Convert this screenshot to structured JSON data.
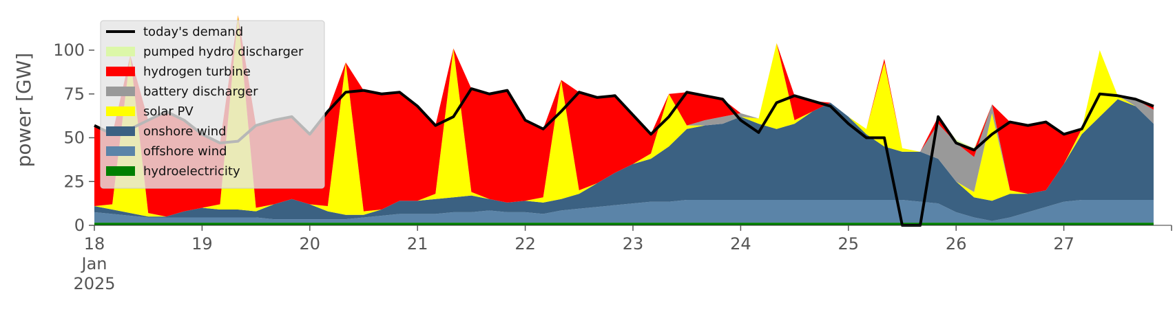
{
  "chart_data": {
    "type": "area",
    "ylabel": "power [GW]",
    "x": [
      "2025-01-18T00:00",
      "2025-01-18T04:00",
      "2025-01-18T08:00",
      "2025-01-18T12:00",
      "2025-01-18T16:00",
      "2025-01-18T20:00",
      "2025-01-19T00:00",
      "2025-01-19T04:00",
      "2025-01-19T08:00",
      "2025-01-19T12:00",
      "2025-01-19T16:00",
      "2025-01-19T20:00",
      "2025-01-20T00:00",
      "2025-01-20T04:00",
      "2025-01-20T08:00",
      "2025-01-20T12:00",
      "2025-01-20T16:00",
      "2025-01-20T20:00",
      "2025-01-21T00:00",
      "2025-01-21T04:00",
      "2025-01-21T08:00",
      "2025-01-21T12:00",
      "2025-01-21T16:00",
      "2025-01-21T20:00",
      "2025-01-22T00:00",
      "2025-01-22T04:00",
      "2025-01-22T08:00",
      "2025-01-22T12:00",
      "2025-01-22T16:00",
      "2025-01-22T20:00",
      "2025-01-23T00:00",
      "2025-01-23T04:00",
      "2025-01-23T08:00",
      "2025-01-23T12:00",
      "2025-01-23T16:00",
      "2025-01-23T20:00",
      "2025-01-24T00:00",
      "2025-01-24T04:00",
      "2025-01-24T08:00",
      "2025-01-24T12:00",
      "2025-01-24T16:00",
      "2025-01-24T20:00",
      "2025-01-25T00:00",
      "2025-01-25T04:00",
      "2025-01-25T08:00",
      "2025-01-25T12:00",
      "2025-01-25T16:00",
      "2025-01-25T20:00",
      "2025-01-26T00:00",
      "2025-01-26T04:00",
      "2025-01-26T08:00",
      "2025-01-26T12:00",
      "2025-01-26T16:00",
      "2025-01-26T20:00",
      "2025-01-27T00:00",
      "2025-01-27T04:00",
      "2025-01-27T08:00",
      "2025-01-27T12:00",
      "2025-01-27T16:00",
      "2025-01-27T20:00"
    ],
    "demand": {
      "name": "today's demand",
      "color": "#000000",
      "values": [
        57,
        52,
        55,
        60,
        65,
        60,
        52,
        47,
        48,
        57,
        60,
        62,
        52,
        65,
        76,
        77,
        75,
        76,
        68,
        57,
        62,
        78,
        75,
        77,
        60,
        55,
        65,
        76,
        73,
        74,
        63,
        52,
        62,
        76,
        74,
        72,
        60,
        53,
        70,
        74,
        71,
        68,
        58,
        50,
        50,
        0,
        0,
        62,
        47,
        43,
        52,
        59,
        57,
        59,
        52,
        55,
        75,
        74,
        72,
        68
      ]
    },
    "series": [
      {
        "name": "pumped hydro discharger",
        "color": "#dcf7a8",
        "values": [
          0,
          0,
          0,
          0,
          0,
          0,
          0,
          0,
          0,
          0,
          0,
          0,
          0,
          0,
          0,
          0,
          0,
          0,
          0,
          0,
          0,
          0,
          0,
          0,
          0,
          0,
          0,
          0,
          0,
          0,
          0,
          0,
          0,
          0,
          0,
          0,
          0,
          0,
          0,
          0,
          0,
          0,
          0,
          0,
          0,
          0,
          0,
          0,
          2,
          1,
          0,
          0,
          0,
          0,
          0,
          0,
          0,
          0,
          0,
          0
        ]
      },
      {
        "name": "hydrogen turbine",
        "color": "#ff0000",
        "values": [
          46,
          40,
          0,
          53,
          60,
          52,
          42,
          35,
          0,
          47,
          48,
          47,
          40,
          54,
          0,
          69,
          66,
          62,
          54,
          39,
          0,
          59,
          60,
          64,
          46,
          39,
          0,
          56,
          49,
          44,
          28,
          11,
          0,
          19,
          14,
          10,
          0,
          0,
          0,
          14,
          6,
          0,
          0,
          0,
          2,
          0,
          0,
          4,
          0,
          4,
          0,
          39,
          39,
          39,
          17,
          0,
          0,
          0,
          0,
          2
        ]
      },
      {
        "name": "battery discharger",
        "color": "#999999",
        "values": [
          0,
          0,
          0,
          0,
          0,
          0,
          0,
          0,
          0,
          0,
          0,
          0,
          0,
          0,
          0,
          0,
          0,
          0,
          0,
          0,
          0,
          0,
          0,
          0,
          0,
          0,
          0,
          0,
          0,
          0,
          0,
          0,
          0,
          0,
          3,
          4,
          2,
          0,
          0,
          0,
          0,
          0,
          0,
          0,
          0,
          0,
          0,
          20,
          22,
          20,
          5,
          0,
          0,
          0,
          0,
          0,
          0,
          0,
          4,
          8
        ]
      },
      {
        "name": "solar PV",
        "color": "#ffff00",
        "values": [
          0,
          3,
          90,
          2,
          0,
          0,
          0,
          3,
          111,
          2,
          0,
          0,
          0,
          3,
          87,
          2,
          0,
          0,
          0,
          3,
          85,
          2,
          0,
          0,
          0,
          3,
          68,
          2,
          0,
          0,
          0,
          3,
          30,
          2,
          0,
          0,
          0,
          3,
          49,
          2,
          0,
          0,
          0,
          3,
          48,
          2,
          0,
          0,
          0,
          3,
          50,
          2,
          0,
          0,
          0,
          3,
          38,
          2,
          0,
          0
        ]
      },
      {
        "name": "onshore wind",
        "color": "#3b6182",
        "values": [
          3.5,
          2.5,
          1.5,
          0.5,
          0.5,
          3.5,
          5.5,
          4.5,
          4.5,
          3.5,
          8.5,
          11.5,
          8.5,
          4.5,
          2.5,
          1.5,
          3.5,
          7.5,
          7.5,
          8.5,
          8.5,
          9.5,
          6.5,
          5.5,
          6.5,
          6.5,
          6.5,
          8.5,
          13.5,
          18.5,
          22.5,
          24.5,
          31.5,
          40.5,
          42.5,
          43.5,
          47.5,
          43.5,
          40.5,
          43.5,
          50.5,
          55.5,
          47.5,
          37.5,
          30.5,
          27.5,
          28.5,
          25.5,
          17.5,
          11.5,
          11.5,
          13.5,
          10.5,
          9.5,
          21.5,
          37.5,
          47.5,
          57.5,
          53.5,
          43.5
        ]
      },
      {
        "name": "offshore wind",
        "color": "#5b84a8",
        "values": [
          6,
          5,
          4,
          3,
          3,
          3,
          3,
          3,
          3,
          3,
          2,
          2,
          2,
          2,
          2,
          3,
          4,
          5,
          5,
          5,
          6,
          6,
          7,
          6,
          6,
          5,
          7,
          8,
          9,
          10,
          11,
          12,
          12,
          13,
          13,
          13,
          13,
          13,
          13,
          13,
          13,
          13,
          13,
          13,
          13,
          13,
          12,
          11,
          6,
          3,
          1,
          3,
          6,
          9,
          12,
          13,
          13,
          13,
          13,
          13
        ]
      },
      {
        "name": "hydroelectricity",
        "color": "#008000",
        "values": [
          1.5,
          1.5,
          1.5,
          1.5,
          1.5,
          1.5,
          1.5,
          1.5,
          1.5,
          1.5,
          1.5,
          1.5,
          1.5,
          1.5,
          1.5,
          1.5,
          1.5,
          1.5,
          1.5,
          1.5,
          1.5,
          1.5,
          1.5,
          1.5,
          1.5,
          1.5,
          1.5,
          1.5,
          1.5,
          1.5,
          1.5,
          1.5,
          1.5,
          1.5,
          1.5,
          1.5,
          1.5,
          1.5,
          1.5,
          1.5,
          1.5,
          1.5,
          1.5,
          1.5,
          1.5,
          1.5,
          1.5,
          1.5,
          1.5,
          1.5,
          1.5,
          1.5,
          1.5,
          1.5,
          1.5,
          1.5,
          1.5,
          1.5,
          1.5,
          1.5
        ]
      }
    ],
    "xlim": [
      "2025-01-18T00:00",
      "2025-01-28T00:00"
    ],
    "xticks": [
      {
        "value": "2025-01-18T00:00",
        "label": "18\nJan\n2025"
      },
      {
        "value": "2025-01-19T00:00",
        "label": "19"
      },
      {
        "value": "2025-01-20T00:00",
        "label": "20"
      },
      {
        "value": "2025-01-21T00:00",
        "label": "21"
      },
      {
        "value": "2025-01-22T00:00",
        "label": "22"
      },
      {
        "value": "2025-01-23T00:00",
        "label": "23"
      },
      {
        "value": "2025-01-24T00:00",
        "label": "24"
      },
      {
        "value": "2025-01-25T00:00",
        "label": "25"
      },
      {
        "value": "2025-01-26T00:00",
        "label": "26"
      },
      {
        "value": "2025-01-27T00:00",
        "label": "27"
      }
    ],
    "ylim": [
      0,
      120
    ],
    "yticks": [
      0,
      25,
      50,
      75,
      100
    ],
    "legend": "upper left"
  }
}
